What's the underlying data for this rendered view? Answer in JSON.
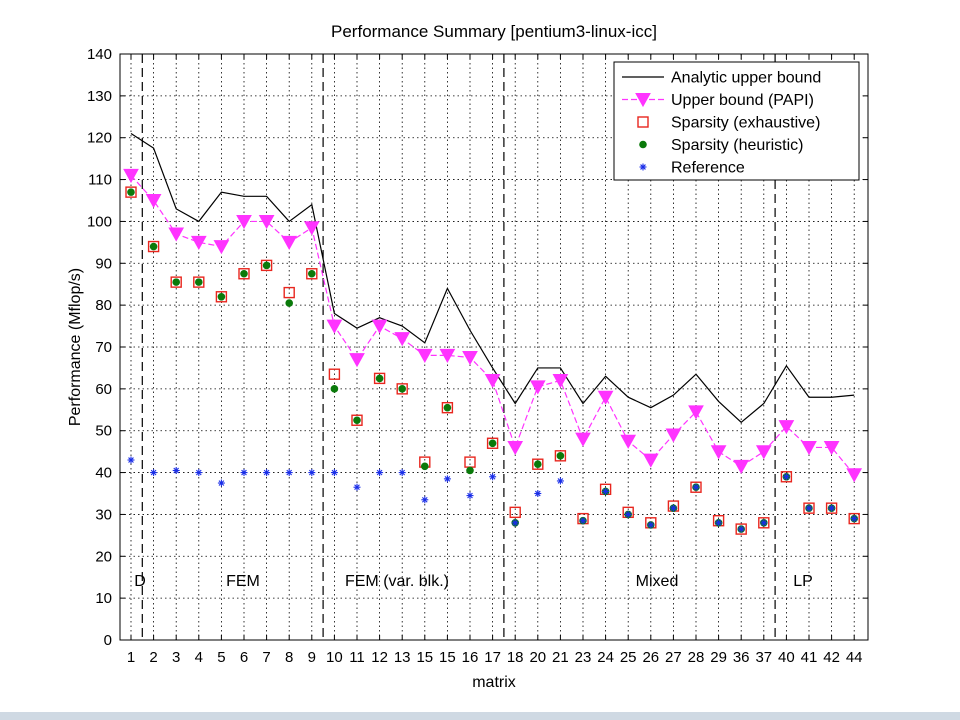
{
  "chart_data": {
    "type": "line",
    "title": "Performance Summary  [pentium3-linux-icc]",
    "xlabel": "matrix",
    "ylabel": "Performance (Mflop/s)",
    "ylim": [
      0,
      140
    ],
    "yticks": [
      0,
      10,
      20,
      30,
      40,
      50,
      60,
      70,
      80,
      90,
      100,
      110,
      120,
      130,
      140
    ],
    "grid": true,
    "legend_position": "top-right",
    "categories": [
      "1",
      "2",
      "3",
      "4",
      "5",
      "6",
      "7",
      "8",
      "9",
      "10",
      "11",
      "12",
      "13",
      "15",
      "15",
      "16",
      "17",
      "18",
      "20",
      "21",
      "23",
      "24",
      "25",
      "26",
      "27",
      "28",
      "29",
      "36",
      "37",
      "40",
      "41",
      "42",
      "44"
    ],
    "series": [
      {
        "name": "Analytic upper bound",
        "style": "line",
        "color": "#000000",
        "values": [
          121,
          117.5,
          103,
          100,
          107,
          106,
          106,
          100,
          104,
          78,
          74.5,
          77,
          75,
          71,
          84,
          74,
          65,
          56.5,
          65,
          65,
          56.5,
          63,
          58,
          55.5,
          58.5,
          63.5,
          57,
          52,
          56.5,
          65.5,
          58,
          58,
          58.5
        ]
      },
      {
        "name": "Upper bound (PAPI)",
        "style": "dashed-triangle",
        "color": "#ff33ff",
        "values": [
          111,
          105,
          97,
          95,
          94,
          100,
          100,
          95,
          98.5,
          75,
          67,
          75,
          72,
          68,
          68,
          67.5,
          62,
          46,
          60.5,
          62,
          48,
          58,
          47.5,
          43,
          49,
          54.5,
          45,
          41.5,
          45,
          51,
          46,
          46,
          39.5
        ]
      },
      {
        "name": "Sparsity (exhaustive)",
        "style": "square",
        "color": "#e8261e",
        "values": [
          107,
          94,
          85.5,
          85.5,
          82,
          87.5,
          89.5,
          83,
          87.5,
          63.5,
          52.5,
          62.5,
          60,
          42.5,
          55.5,
          42.5,
          47,
          30.5,
          42,
          44,
          29,
          36,
          30.5,
          28,
          32,
          36.5,
          28.5,
          26.5,
          28,
          39,
          31.5,
          31.5,
          29
        ]
      },
      {
        "name": "Sparsity (heuristic)",
        "style": "dot",
        "color": "#0a7a0a",
        "values": [
          107,
          94,
          85.5,
          85.5,
          82,
          87.5,
          89.5,
          80.5,
          87.5,
          60,
          52.5,
          62.5,
          60,
          41.5,
          55.5,
          40.5,
          47,
          28,
          42,
          44,
          28.5,
          35.5,
          30,
          27.5,
          31.5,
          36.5,
          28,
          26.5,
          28,
          39,
          31.5,
          31.5,
          29
        ]
      },
      {
        "name": "Reference",
        "style": "asterisk",
        "color": "#1a2ee8",
        "values": [
          43,
          40,
          40.5,
          40,
          37.5,
          40,
          40,
          40,
          40,
          40,
          36.5,
          40,
          40,
          33.5,
          38.5,
          34.5,
          39,
          28,
          35,
          38,
          28.5,
          35.5,
          30,
          27.5,
          31.5,
          36.5,
          28,
          26.5,
          28,
          39,
          31.5,
          31.5,
          29
        ]
      }
    ],
    "region_labels": [
      "D",
      "FEM",
      "FEM (var. blk.)",
      "Mixed",
      "LP"
    ]
  }
}
